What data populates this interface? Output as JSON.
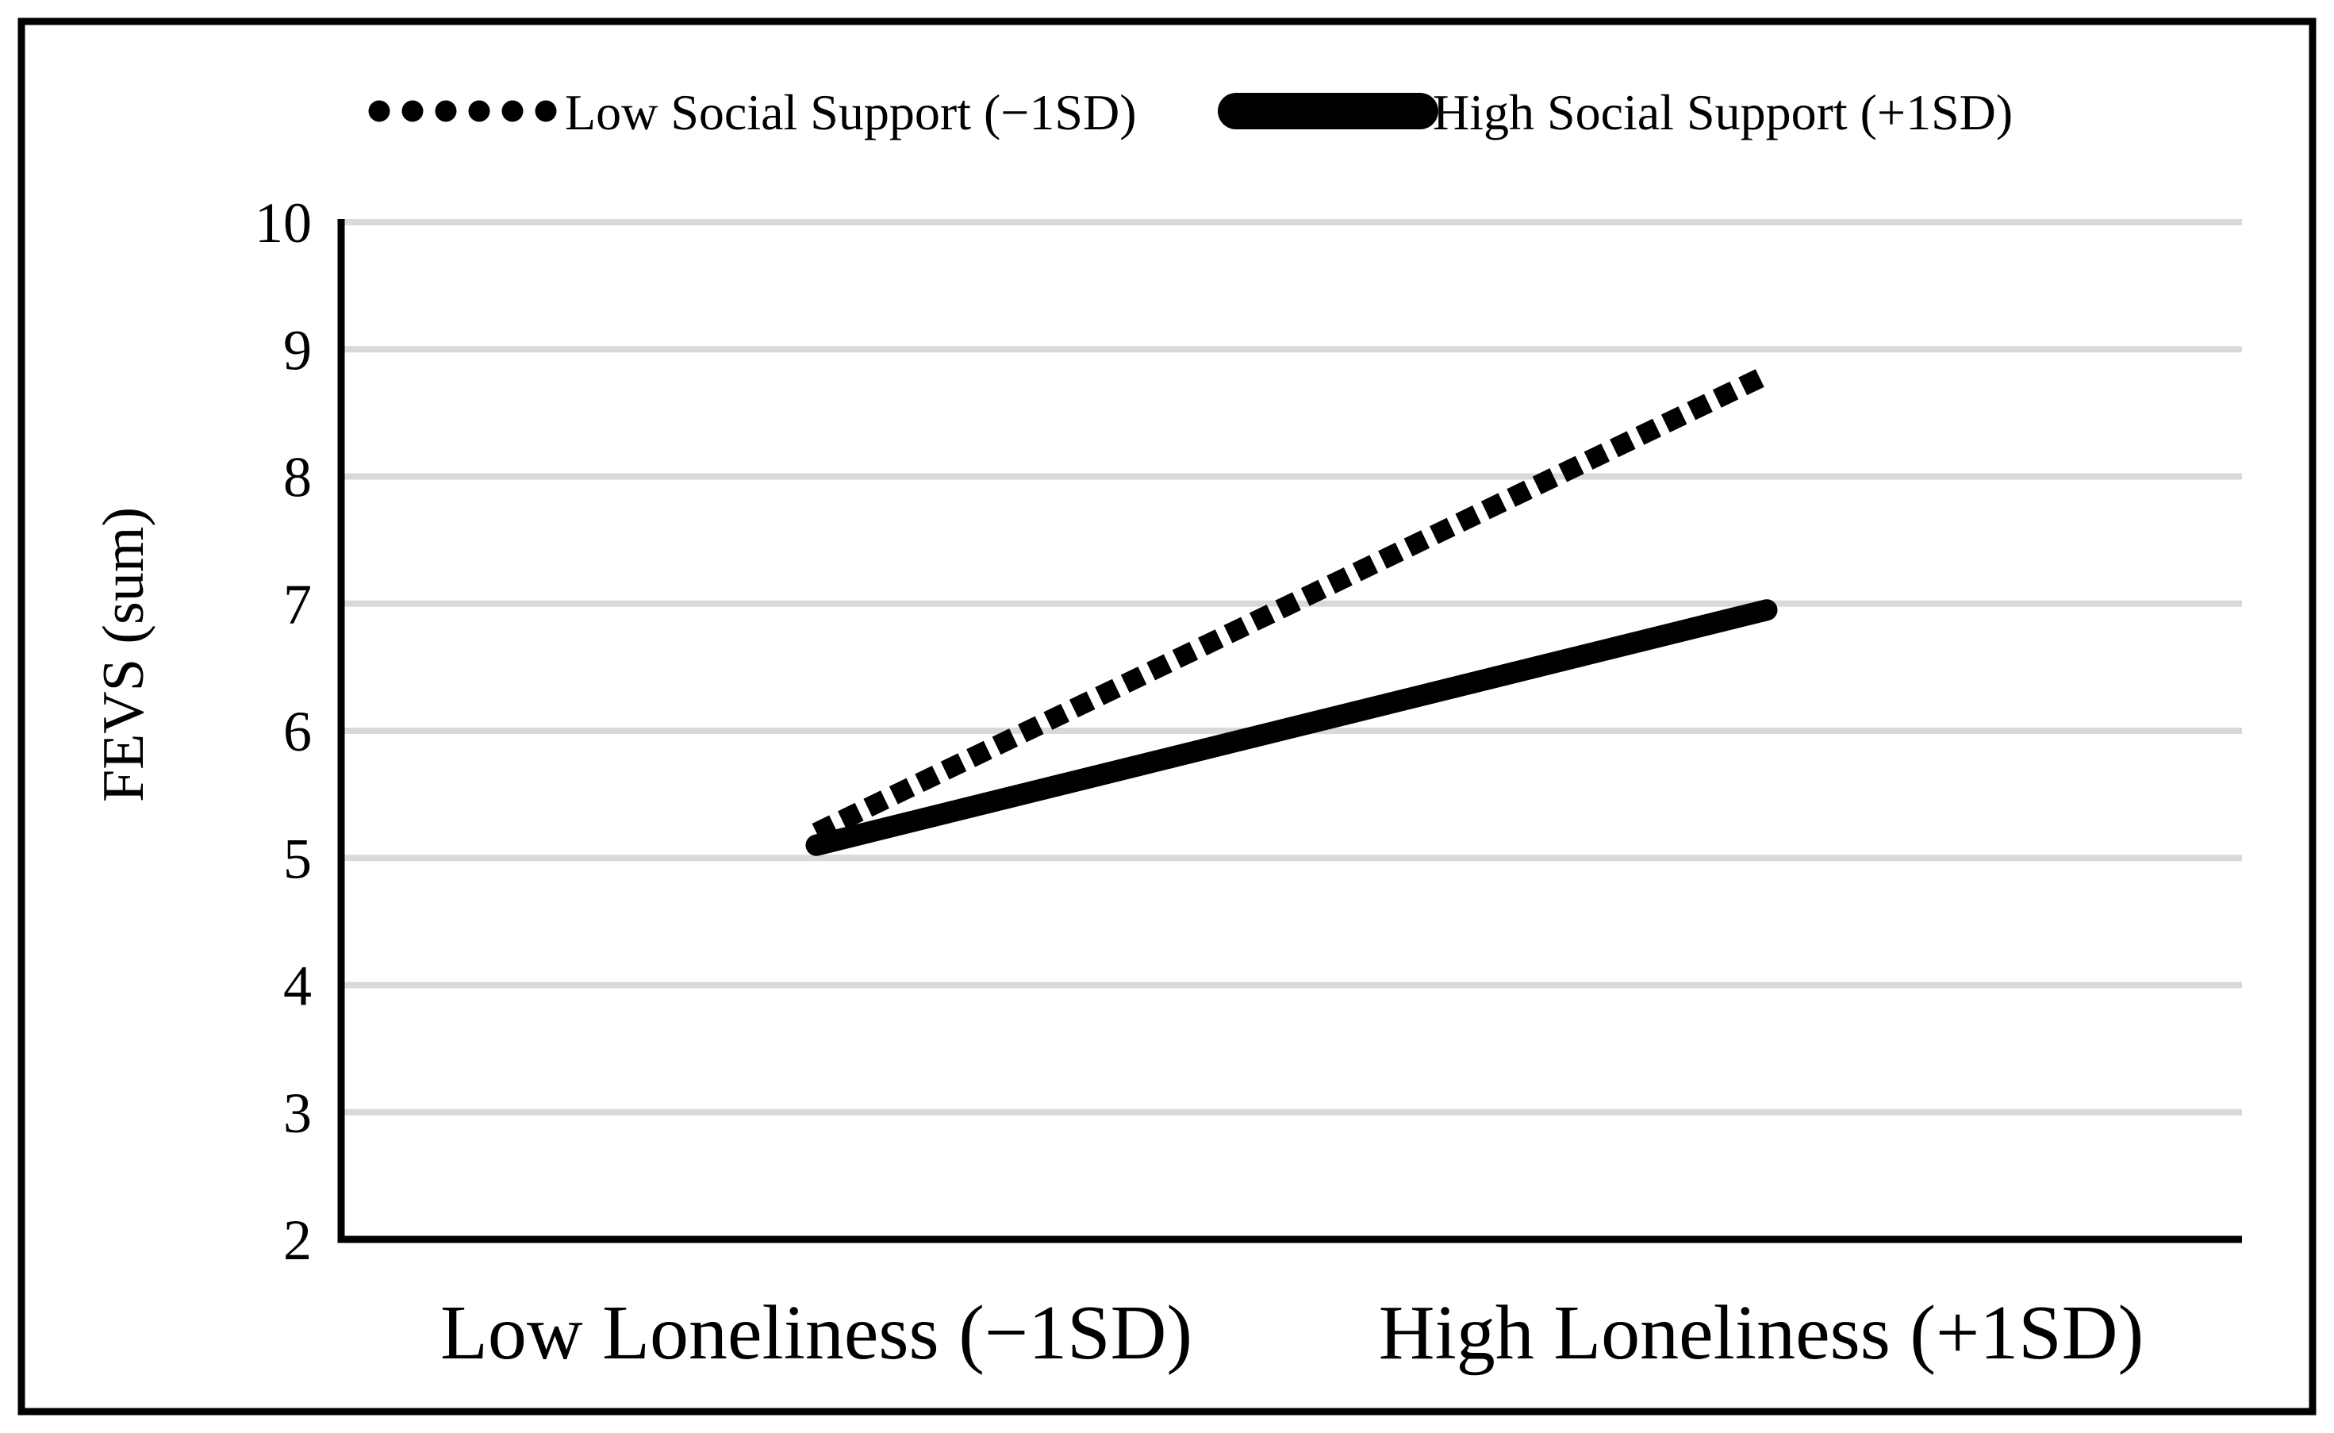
{
  "figure": {
    "background": "#ffffff",
    "border_color": "#000000"
  },
  "chart_data": {
    "type": "line",
    "title": "",
    "categories": [
      "Low Loneliness (−1SD)",
      "High Loneliness (+1SD)"
    ],
    "series": [
      {
        "name": "Low Social Support (−1SD)",
        "line_style": "dotted",
        "color": "#000000",
        "values": [
          5.2,
          8.8
        ]
      },
      {
        "name": "High Social Support (+1SD)",
        "line_style": "solid",
        "color": "#000000",
        "values": [
          5.1,
          6.95
        ]
      }
    ],
    "xlabel": "",
    "ylabel": "FEVS (sum)",
    "ylim": [
      2,
      10
    ],
    "yticks": [
      2,
      3,
      4,
      5,
      6,
      7,
      8,
      9,
      10
    ],
    "grid": true,
    "gridline_color": "#d9d9d9",
    "axis_color": "#000000",
    "legend_position": "top"
  }
}
